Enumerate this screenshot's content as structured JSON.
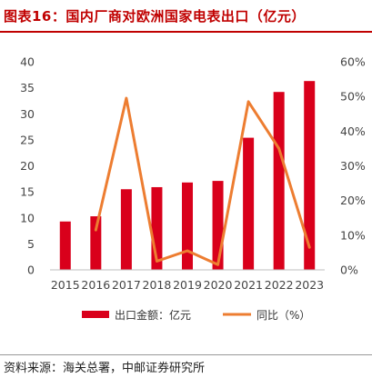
{
  "title": "图表16：国内厂商对欧洲国家电表出口（亿元）",
  "source": "资料来源：海关总署，中邮证券研究所",
  "colors": {
    "bar": "#d9001b",
    "line": "#ed7d31",
    "title": "#c00000"
  },
  "chart_data": {
    "type": "bar",
    "categories": [
      "2015",
      "2016",
      "2017",
      "2018",
      "2019",
      "2020",
      "2021",
      "2022",
      "2023"
    ],
    "series": [
      {
        "name": "出口金额：亿元",
        "type": "bar",
        "axis": "left",
        "values": [
          9.3,
          10.3,
          15.5,
          15.9,
          16.8,
          17.1,
          25.4,
          34.2,
          36.3
        ]
      },
      {
        "name": "同比（%）",
        "type": "line",
        "axis": "right",
        "values": [
          null,
          11.5,
          49.5,
          2.5,
          5.5,
          1.5,
          48.5,
          35.0,
          6.5
        ]
      }
    ],
    "y_left": {
      "min": 0,
      "max": 40,
      "ticks": [
        "0",
        "5",
        "10",
        "15",
        "20",
        "25",
        "30",
        "35",
        "40"
      ]
    },
    "y_right": {
      "min": 0,
      "max": 60,
      "ticks": [
        "0%",
        "10%",
        "20%",
        "30%",
        "40%",
        "50%",
        "60%"
      ]
    },
    "grid": false,
    "legend": "bottom"
  }
}
